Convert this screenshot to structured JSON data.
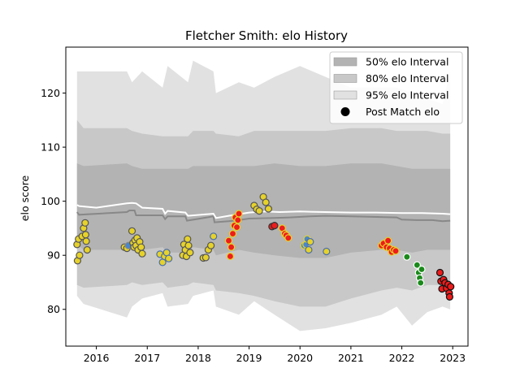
{
  "chart_data": {
    "type": "scatter",
    "title": "Fletcher Smith: elo History",
    "xlabel": "",
    "ylabel": "elo score",
    "xlim": [
      2015.4,
      2023.3
    ],
    "ylim": [
      73.2,
      128.5
    ],
    "x_ticks": [
      2016,
      2017,
      2018,
      2019,
      2020,
      2021,
      2022,
      2023
    ],
    "x_tick_labels": [
      "2016",
      "2017",
      "2018",
      "2019",
      "2020",
      "2021",
      "2022",
      "2023"
    ],
    "y_ticks": [
      80,
      90,
      100,
      110,
      120
    ],
    "y_tick_labels": [
      "80",
      "90",
      "100",
      "110",
      "120"
    ],
    "grid": false,
    "legend": {
      "position": "top-right",
      "entries": [
        {
          "label": "50% elo Interval",
          "color": "#b3b3b3",
          "kind": "patch"
        },
        {
          "label": "80% elo Interval",
          "color": "#c8c8c8",
          "kind": "patch"
        },
        {
          "label": "95% elo Interval",
          "color": "#e1e1e1",
          "kind": "patch"
        },
        {
          "label": "Post Match elo",
          "color": "#000000",
          "kind": "marker"
        }
      ]
    },
    "bands": {
      "x": [
        2015.62,
        2015.75,
        2016.6,
        2016.7,
        2016.9,
        2017.3,
        2017.4,
        2017.8,
        2017.9,
        2018.3,
        2018.35,
        2018.8,
        2019.1,
        2019.5,
        2020.0,
        2020.5,
        2021.0,
        2021.6,
        2021.9,
        2022.2,
        2022.5,
        2022.8,
        2022.95
      ],
      "p95_low": [
        82.5,
        81.0,
        78.5,
        80.5,
        82.0,
        83.0,
        80.5,
        81.0,
        82.5,
        83.5,
        80.5,
        79.0,
        81.5,
        79.0,
        76.0,
        76.5,
        77.5,
        79.0,
        80.5,
        77.0,
        79.5,
        80.5,
        80.0
      ],
      "p95_high": [
        124.0,
        124.0,
        124.0,
        122.0,
        124.0,
        121.0,
        125.0,
        122.0,
        126.0,
        124.0,
        120.0,
        122.0,
        121.0,
        123.0,
        125.0,
        123.0,
        121.0,
        121.0,
        121.0,
        120.0,
        119.0,
        118.0,
        124.0
      ],
      "p80_low": [
        84.5,
        84.0,
        84.5,
        85.0,
        84.5,
        85.0,
        84.0,
        84.5,
        85.0,
        84.5,
        83.5,
        83.0,
        82.5,
        81.5,
        80.5,
        80.5,
        82.0,
        83.5,
        84.0,
        83.5,
        84.5,
        84.5,
        84.5
      ],
      "p80_high": [
        115.0,
        113.5,
        113.5,
        113.0,
        112.5,
        112.0,
        112.0,
        112.0,
        113.0,
        113.0,
        112.5,
        112.0,
        113.0,
        113.0,
        113.0,
        113.0,
        113.5,
        113.5,
        113.0,
        113.0,
        113.0,
        112.5,
        112.5
      ],
      "p50_low": [
        92.0,
        91.0,
        91.0,
        91.5,
        91.0,
        91.5,
        90.5,
        90.5,
        91.5,
        91.0,
        90.0,
        91.0,
        90.5,
        90.0,
        89.5,
        89.5,
        90.5,
        91.0,
        91.0,
        90.5,
        91.0,
        91.0,
        91.0
      ],
      "p50_high": [
        107.0,
        106.5,
        107.0,
        106.5,
        106.0,
        106.0,
        106.0,
        106.0,
        106.5,
        106.5,
        106.5,
        106.5,
        106.5,
        107.0,
        106.5,
        106.5,
        107.0,
        107.0,
        106.5,
        106.0,
        106.0,
        106.0,
        106.0
      ]
    },
    "series": [
      {
        "line": "mean",
        "color": "#888888",
        "x": [
          2015.62,
          2015.66,
          2016.6,
          2016.65,
          2016.75,
          2016.78,
          2016.9,
          2017.3,
          2017.35,
          2017.4,
          2017.75,
          2017.78,
          2018.3,
          2018.32,
          2018.6,
          2018.8,
          2019.0,
          2019.5,
          2019.8,
          2020.2,
          2020.5,
          2021.0,
          2021.5,
          2021.9,
          2022.0,
          2022.3,
          2022.6,
          2022.8,
          2022.95
        ],
        "y": [
          98.0,
          97.5,
          98.0,
          98.3,
          98.3,
          97.4,
          97.4,
          97.4,
          96.7,
          97.2,
          97.2,
          96.4,
          97.2,
          96.1,
          96.3,
          96.5,
          96.8,
          96.9,
          97.0,
          97.2,
          97.3,
          97.2,
          97.1,
          97.0,
          96.6,
          96.5,
          96.5,
          96.3,
          96.4
        ]
      },
      {
        "line": "median",
        "color": "#ffffff",
        "x": [
          2015.62,
          2015.66,
          2016.0,
          2016.6,
          2016.7,
          2016.78,
          2016.9,
          2017.3,
          2017.35,
          2017.4,
          2017.75,
          2017.8,
          2018.3,
          2018.35,
          2018.6,
          2018.8,
          2019.0,
          2019.3,
          2019.6,
          2020.0,
          2020.5,
          2021.0,
          2021.5,
          2022.0,
          2022.4,
          2022.8,
          2022.95
        ],
        "y": [
          99.3,
          99.1,
          98.8,
          99.6,
          99.7,
          99.6,
          98.8,
          98.6,
          97.7,
          98.2,
          97.9,
          97.3,
          97.7,
          96.9,
          97.3,
          97.6,
          97.9,
          98.1,
          98.0,
          98.1,
          98.0,
          97.9,
          97.9,
          97.8,
          97.8,
          97.7,
          97.6
        ]
      }
    ],
    "points": [
      {
        "x": 2015.62,
        "y": 92.0,
        "color": "#e6d22a",
        "edge": "#555555"
      },
      {
        "x": 2015.65,
        "y": 93.0,
        "color": "#e6d22a",
        "edge": "#555555"
      },
      {
        "x": 2015.63,
        "y": 89.0,
        "color": "#e6d22a",
        "edge": "#555555"
      },
      {
        "x": 2015.67,
        "y": 90.0,
        "color": "#e6d22a",
        "edge": "#555555"
      },
      {
        "x": 2015.72,
        "y": 93.5,
        "color": "#e6d22a",
        "edge": "#555555"
      },
      {
        "x": 2015.75,
        "y": 95.0,
        "color": "#e6d22a",
        "edge": "#555555"
      },
      {
        "x": 2015.78,
        "y": 96.0,
        "color": "#e6d22a",
        "edge": "#555555"
      },
      {
        "x": 2015.79,
        "y": 93.8,
        "color": "#e6d22a",
        "edge": "#555555"
      },
      {
        "x": 2015.8,
        "y": 92.6,
        "color": "#e6d22a",
        "edge": "#555555"
      },
      {
        "x": 2015.82,
        "y": 91.0,
        "color": "#e6d22a",
        "edge": "#555555"
      },
      {
        "x": 2016.55,
        "y": 91.5,
        "color": "#e6d22a",
        "edge": "#555555"
      },
      {
        "x": 2016.6,
        "y": 91.3,
        "color": "#e6d22a",
        "edge": "#555555"
      },
      {
        "x": 2016.63,
        "y": 91.8,
        "color": "#4a86c8",
        "edge": "#888888"
      },
      {
        "x": 2016.7,
        "y": 94.5,
        "color": "#e6d22a",
        "edge": "#555555"
      },
      {
        "x": 2016.72,
        "y": 92.3,
        "color": "#e6d22a",
        "edge": "#555555"
      },
      {
        "x": 2016.74,
        "y": 91.5,
        "color": "#e6d22a",
        "edge": "#555555"
      },
      {
        "x": 2016.76,
        "y": 92.8,
        "color": "#e6d22a",
        "edge": "#555555"
      },
      {
        "x": 2016.78,
        "y": 91.8,
        "color": "#e6d22a",
        "edge": "#555555"
      },
      {
        "x": 2016.8,
        "y": 93.2,
        "color": "#e6d22a",
        "edge": "#555555"
      },
      {
        "x": 2016.82,
        "y": 91.0,
        "color": "#e6d22a",
        "edge": "#555555"
      },
      {
        "x": 2016.85,
        "y": 92.5,
        "color": "#e6d22a",
        "edge": "#555555"
      },
      {
        "x": 2016.88,
        "y": 91.5,
        "color": "#e6d22a",
        "edge": "#555555"
      },
      {
        "x": 2016.9,
        "y": 90.3,
        "color": "#e6d22a",
        "edge": "#555555"
      },
      {
        "x": 2017.25,
        "y": 90.2,
        "color": "#e6d22a",
        "edge": "#4a6fa8"
      },
      {
        "x": 2017.3,
        "y": 88.7,
        "color": "#e6d22a",
        "edge": "#4a6fa8"
      },
      {
        "x": 2017.34,
        "y": 89.8,
        "color": "#e6d22a",
        "edge": "#4a6fa8"
      },
      {
        "x": 2017.38,
        "y": 90.5,
        "color": "#e6d22a",
        "edge": "#4a6fa8"
      },
      {
        "x": 2017.42,
        "y": 89.4,
        "color": "#e6d22a",
        "edge": "#4a6fa8"
      },
      {
        "x": 2017.7,
        "y": 90.0,
        "color": "#e6d22a",
        "edge": "#555555"
      },
      {
        "x": 2017.72,
        "y": 92.0,
        "color": "#e6d22a",
        "edge": "#555555"
      },
      {
        "x": 2017.75,
        "y": 91.0,
        "color": "#e6d22a",
        "edge": "#555555"
      },
      {
        "x": 2017.77,
        "y": 89.8,
        "color": "#e6d22a",
        "edge": "#555555"
      },
      {
        "x": 2017.79,
        "y": 93.0,
        "color": "#e6d22a",
        "edge": "#555555"
      },
      {
        "x": 2017.81,
        "y": 91.8,
        "color": "#e6d22a",
        "edge": "#555555"
      },
      {
        "x": 2017.84,
        "y": 90.5,
        "color": "#e6d22a",
        "edge": "#555555"
      },
      {
        "x": 2018.1,
        "y": 89.5,
        "color": "#e6d22a",
        "edge": "#555555"
      },
      {
        "x": 2018.15,
        "y": 89.6,
        "color": "#e6d22a",
        "edge": "#555555"
      },
      {
        "x": 2018.2,
        "y": 91.0,
        "color": "#e6d22a",
        "edge": "#555555"
      },
      {
        "x": 2018.25,
        "y": 91.8,
        "color": "#e6d22a",
        "edge": "#555555"
      },
      {
        "x": 2018.3,
        "y": 93.5,
        "color": "#e6d22a",
        "edge": "#4a6fa8"
      },
      {
        "x": 2018.6,
        "y": 92.7,
        "color": "#ee1c1c",
        "edge": "#e6d22a"
      },
      {
        "x": 2018.63,
        "y": 89.8,
        "color": "#ee1c1c",
        "edge": "#e6d22a"
      },
      {
        "x": 2018.65,
        "y": 91.5,
        "color": "#ee1c1c",
        "edge": "#e6d22a"
      },
      {
        "x": 2018.68,
        "y": 94.0,
        "color": "#ee1c1c",
        "edge": "#e6d22a"
      },
      {
        "x": 2018.71,
        "y": 95.5,
        "color": "#ee1c1c",
        "edge": "#e6d22a"
      },
      {
        "x": 2018.73,
        "y": 97.0,
        "color": "#ee1c1c",
        "edge": "#e6d22a"
      },
      {
        "x": 2018.76,
        "y": 95.2,
        "color": "#ee1c1c",
        "edge": "#e6d22a"
      },
      {
        "x": 2018.78,
        "y": 96.5,
        "color": "#ee1c1c",
        "edge": "#e6d22a"
      },
      {
        "x": 2018.8,
        "y": 97.7,
        "color": "#ee1c1c",
        "edge": "#e6d22a"
      },
      {
        "x": 2019.1,
        "y": 99.2,
        "color": "#e6d22a",
        "edge": "#555555"
      },
      {
        "x": 2019.15,
        "y": 98.5,
        "color": "#e6d22a",
        "edge": "#555555"
      },
      {
        "x": 2019.2,
        "y": 98.2,
        "color": "#e6d22a",
        "edge": "#555555"
      },
      {
        "x": 2019.28,
        "y": 100.8,
        "color": "#e6d22a",
        "edge": "#555555"
      },
      {
        "x": 2019.33,
        "y": 99.8,
        "color": "#e6d22a",
        "edge": "#555555"
      },
      {
        "x": 2019.38,
        "y": 98.6,
        "color": "#e6d22a",
        "edge": "#555555"
      },
      {
        "x": 2019.45,
        "y": 95.3,
        "color": "#ee1c1c",
        "edge": "#333333"
      },
      {
        "x": 2019.5,
        "y": 95.5,
        "color": "#ee1c1c",
        "edge": "#333333"
      },
      {
        "x": 2019.65,
        "y": 95.0,
        "color": "#ee1c1c",
        "edge": "#e6d22a"
      },
      {
        "x": 2019.7,
        "y": 94.0,
        "color": "#ee1c1c",
        "edge": "#e6d22a"
      },
      {
        "x": 2019.73,
        "y": 93.7,
        "color": "#ee1c1c",
        "edge": "#e6d22a"
      },
      {
        "x": 2019.77,
        "y": 93.2,
        "color": "#ee1c1c",
        "edge": "#e6d22a"
      },
      {
        "x": 2020.08,
        "y": 91.8,
        "color": "#4a86c8",
        "edge": "#e6d22a"
      },
      {
        "x": 2020.12,
        "y": 92.0,
        "color": "#4a86c8",
        "edge": "#e6d22a"
      },
      {
        "x": 2020.14,
        "y": 93.0,
        "color": "#4a86c8",
        "edge": "#e6d22a"
      },
      {
        "x": 2020.17,
        "y": 91.0,
        "color": "#e6d22a",
        "edge": "#4a6fa8"
      },
      {
        "x": 2020.2,
        "y": 92.5,
        "color": "#e6d22a",
        "edge": "#4a6fa8"
      },
      {
        "x": 2020.52,
        "y": 90.7,
        "color": "#e6d22a",
        "edge": "#4a6fa8"
      },
      {
        "x": 2021.6,
        "y": 91.8,
        "color": "#ee1c1c",
        "edge": "#e6d22a"
      },
      {
        "x": 2021.64,
        "y": 92.2,
        "color": "#ee1c1c",
        "edge": "#e6d22a"
      },
      {
        "x": 2021.7,
        "y": 91.5,
        "color": "#ee1c1c",
        "edge": "#e6d22a"
      },
      {
        "x": 2021.73,
        "y": 92.7,
        "color": "#ee1c1c",
        "edge": "#e6d22a"
      },
      {
        "x": 2021.76,
        "y": 91.3,
        "color": "#ee1c1c",
        "edge": "#e6d22a"
      },
      {
        "x": 2021.8,
        "y": 90.6,
        "color": "#ee1c1c",
        "edge": "#e6d22a"
      },
      {
        "x": 2021.84,
        "y": 91.0,
        "color": "#ee1c1c",
        "edge": "#e6d22a"
      },
      {
        "x": 2021.88,
        "y": 90.8,
        "color": "#ee1c1c",
        "edge": "#e6d22a"
      },
      {
        "x": 2022.1,
        "y": 89.7,
        "color": "#1a8a1a",
        "edge": "#ffffff"
      },
      {
        "x": 2022.3,
        "y": 88.2,
        "color": "#1a8a1a",
        "edge": "#ffffff"
      },
      {
        "x": 2022.33,
        "y": 86.8,
        "color": "#1a8a1a",
        "edge": "#ffffff"
      },
      {
        "x": 2022.35,
        "y": 85.8,
        "color": "#1a8a1a",
        "edge": "#ffffff"
      },
      {
        "x": 2022.37,
        "y": 84.9,
        "color": "#1a8a1a",
        "edge": "#ffffff"
      },
      {
        "x": 2022.39,
        "y": 87.4,
        "color": "#1a8a1a",
        "edge": "#ffffff"
      },
      {
        "x": 2022.75,
        "y": 86.8,
        "color": "#ee1c1c",
        "edge": "#111111"
      },
      {
        "x": 2022.77,
        "y": 85.2,
        "color": "#ee1c1c",
        "edge": "#111111"
      },
      {
        "x": 2022.79,
        "y": 83.8,
        "color": "#ee1c1c",
        "edge": "#111111"
      },
      {
        "x": 2022.82,
        "y": 85.5,
        "color": "#ee1c1c",
        "edge": "#111111"
      },
      {
        "x": 2022.85,
        "y": 84.9,
        "color": "#ee1c1c",
        "edge": "#111111"
      },
      {
        "x": 2022.88,
        "y": 83.9,
        "color": "#ee1c1c",
        "edge": "#111111"
      },
      {
        "x": 2022.91,
        "y": 84.6,
        "color": "#ee1c1c",
        "edge": "#111111"
      },
      {
        "x": 2022.93,
        "y": 83.0,
        "color": "#ee1c1c",
        "edge": "#111111"
      },
      {
        "x": 2022.94,
        "y": 82.3,
        "color": "#ee1c1c",
        "edge": "#111111"
      },
      {
        "x": 2022.96,
        "y": 84.2,
        "color": "#ee1c1c",
        "edge": "#111111"
      }
    ]
  }
}
